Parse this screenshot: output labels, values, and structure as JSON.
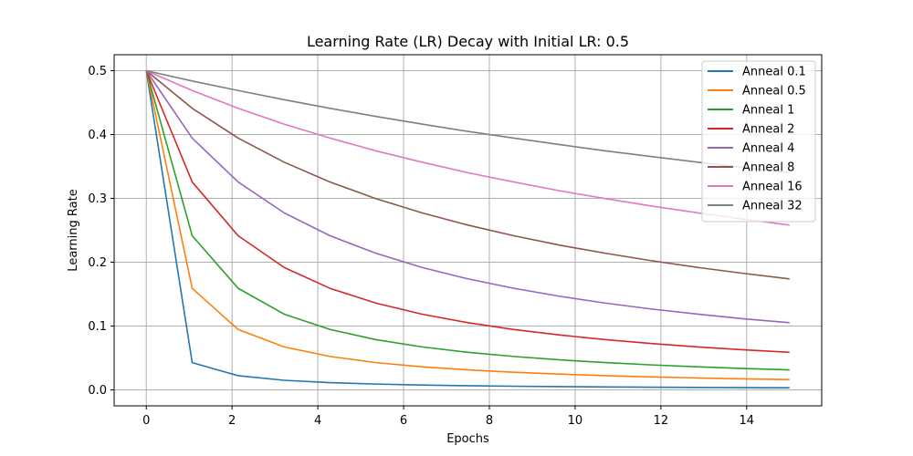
{
  "chart_data": {
    "type": "line",
    "title": "Learning Rate (LR) Decay with Initial LR: 0.5",
    "xlabel": "Epochs",
    "ylabel": "Learning Rate",
    "xlim": [
      -0.75,
      15.75
    ],
    "ylim": [
      -0.025,
      0.525
    ],
    "xticks": [
      0,
      2,
      4,
      6,
      8,
      10,
      12,
      14
    ],
    "yticks": [
      0.0,
      0.1,
      0.2,
      0.3,
      0.4,
      0.5
    ],
    "ytick_labels": [
      "0.0",
      "0.1",
      "0.2",
      "0.3",
      "0.4",
      "0.5"
    ],
    "grid": true,
    "legend_position": "top-right",
    "x": [
      0,
      1.071,
      2.143,
      3.214,
      4.286,
      5.357,
      6.429,
      7.5,
      8.571,
      9.643,
      10.714,
      11.786,
      12.857,
      13.929,
      15
    ],
    "series": [
      {
        "name": "Anneal 0.1",
        "color": "#1f77b4",
        "values": [
          0.5,
          0.0427,
          0.0222,
          0.015,
          0.0113,
          0.0091,
          0.0076,
          0.0065,
          0.0057,
          0.0051,
          0.0046,
          0.0042,
          0.0038,
          0.0035,
          0.0033
        ]
      },
      {
        "name": "Anneal 0.5",
        "color": "#ff7f0e",
        "values": [
          0.5,
          0.159,
          0.0946,
          0.0673,
          0.0523,
          0.0427,
          0.0361,
          0.0313,
          0.0276,
          0.0247,
          0.0223,
          0.0203,
          0.0187,
          0.0173,
          0.0161
        ]
      },
      {
        "name": "Anneal 1",
        "color": "#2ca02c",
        "values": [
          0.5,
          0.2414,
          0.1591,
          0.1186,
          0.0946,
          0.0787,
          0.0673,
          0.0588,
          0.0523,
          0.047,
          0.0427,
          0.0391,
          0.0361,
          0.0335,
          0.0313
        ]
      },
      {
        "name": "Anneal 2",
        "color": "#d62728",
        "values": [
          0.5,
          0.3256,
          0.2414,
          0.1918,
          0.159,
          0.1359,
          0.1186,
          0.1053,
          0.0946,
          0.086,
          0.0787,
          0.0726,
          0.0673,
          0.0628,
          0.0588
        ]
      },
      {
        "name": "Anneal 4",
        "color": "#9467bd",
        "values": [
          0.5,
          0.3944,
          0.3256,
          0.2773,
          0.2414,
          0.2139,
          0.1918,
          0.1739,
          0.1591,
          0.1466,
          0.1359,
          0.1266,
          0.1186,
          0.1114,
          0.1053
        ]
      },
      {
        "name": "Anneal 8",
        "color": "#8c564b",
        "values": [
          0.5,
          0.441,
          0.3944,
          0.3567,
          0.3256,
          0.2995,
          0.2773,
          0.2581,
          0.2414,
          0.2267,
          0.2139,
          0.2023,
          0.1918,
          0.1825,
          0.1739
        ]
      },
      {
        "name": "Anneal 16",
        "color": "#e377c2",
        "values": [
          0.5,
          0.4689,
          0.441,
          0.4163,
          0.3944,
          0.3744,
          0.3567,
          0.3402,
          0.3256,
          0.3118,
          0.2995,
          0.288,
          0.2773,
          0.2674,
          0.2581
        ]
      },
      {
        "name": "Anneal 32",
        "color": "#7f7f7f",
        "values": [
          0.5,
          0.4838,
          0.4689,
          0.4546,
          0.441,
          0.4283,
          0.4163,
          0.4049,
          0.3944,
          0.3842,
          0.3744,
          0.3654,
          0.3567,
          0.3483,
          0.3402
        ]
      }
    ]
  }
}
